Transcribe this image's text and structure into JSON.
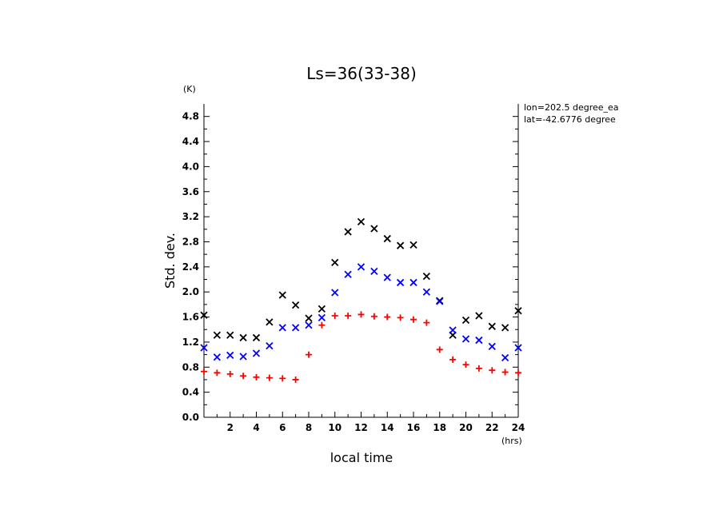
{
  "chart_data": {
    "type": "scatter",
    "title": "Ls=36(33-38)",
    "xlabel": "local time",
    "ylabel": "Std. dev.",
    "x_unit": "(hrs)",
    "y_unit": "(K)",
    "xlim": [
      0,
      24
    ],
    "ylim": [
      0,
      5.0
    ],
    "xticks": [
      2,
      4,
      6,
      8,
      10,
      12,
      14,
      16,
      18,
      20,
      22,
      24
    ],
    "yticks": [
      0.0,
      0.4,
      0.8,
      1.2,
      1.6,
      2.0,
      2.4,
      2.8,
      3.2,
      3.6,
      4.0,
      4.4,
      4.8
    ],
    "ytick_labels": [
      "0.0",
      "0.4",
      "0.8",
      "1.2",
      "1.6",
      "2.0",
      "2.4",
      "2.8",
      "3.2",
      "3.6",
      "4.0",
      "4.4",
      "4.8"
    ],
    "annotations": [
      "lon=202.5 degree_ea",
      "lat=-42.6776 degree"
    ],
    "grid": false,
    "x": [
      0,
      1,
      2,
      3,
      4,
      5,
      6,
      7,
      8,
      9,
      10,
      11,
      12,
      13,
      14,
      15,
      16,
      17,
      18,
      19,
      20,
      21,
      22,
      23,
      24
    ],
    "series": [
      {
        "marker": "x",
        "color": "#000000",
        "values": [
          1.63,
          1.31,
          1.31,
          1.27,
          1.27,
          1.52,
          1.95,
          1.79,
          1.58,
          1.73,
          2.47,
          2.96,
          3.12,
          3.01,
          2.85,
          2.74,
          2.75,
          2.25,
          1.86,
          1.31,
          1.55,
          1.62,
          1.45,
          1.43,
          1.7
        ]
      },
      {
        "marker": "x",
        "color": "#0000ff",
        "values": [
          1.11,
          0.96,
          0.99,
          0.97,
          1.02,
          1.14,
          1.43,
          1.43,
          1.47,
          1.59,
          1.99,
          2.28,
          2.4,
          2.33,
          2.23,
          2.15,
          2.15,
          2.0,
          1.85,
          1.39,
          1.25,
          1.23,
          1.13,
          0.95,
          1.11
        ]
      },
      {
        "marker": "+",
        "color": "#ff0000",
        "values": [
          0.73,
          0.71,
          0.69,
          0.66,
          0.64,
          0.63,
          0.62,
          0.6,
          1.0,
          1.47,
          1.62,
          1.62,
          1.64,
          1.61,
          1.6,
          1.59,
          1.56,
          1.51,
          1.08,
          0.92,
          0.84,
          0.78,
          0.75,
          0.72,
          0.71
        ]
      }
    ]
  }
}
